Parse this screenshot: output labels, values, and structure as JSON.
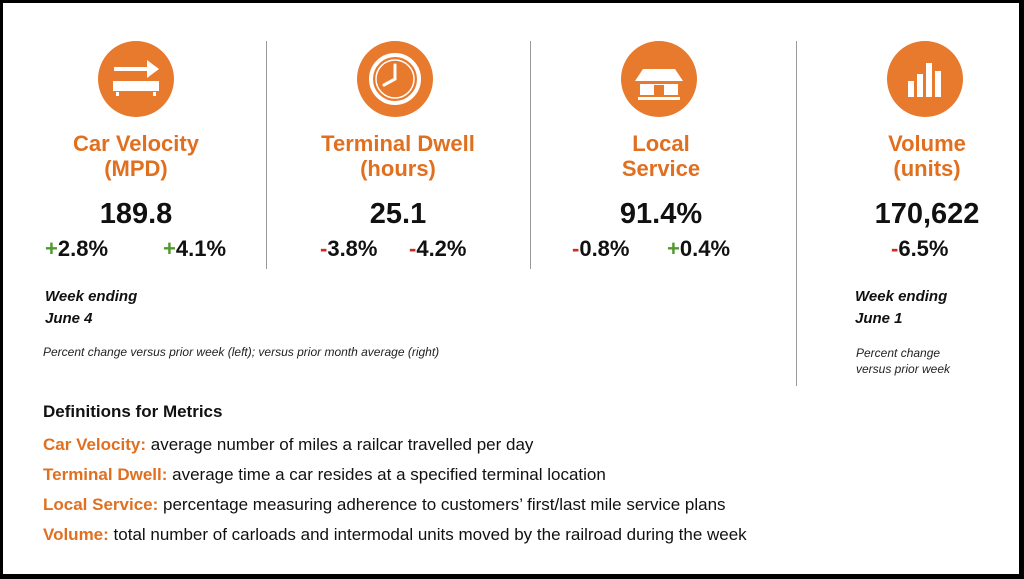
{
  "colors": {
    "accent": "#e87a2e",
    "positive": "#4f9a2f",
    "negative": "#d12a22"
  },
  "metrics": [
    {
      "icon": "railcar-arrow-icon",
      "title_line1": "Car Velocity",
      "title_line2": "(MPD)",
      "value": "189.8",
      "change_week_sign": "+",
      "change_week": "2.8%",
      "change_month_sign": "+",
      "change_month": "4.1%"
    },
    {
      "icon": "clock-icon",
      "title_line1": "Terminal Dwell",
      "title_line2": "(hours)",
      "value": "25.1",
      "change_week_sign": "-",
      "change_week": "3.8%",
      "change_month_sign": "-",
      "change_month": "4.2%"
    },
    {
      "icon": "warehouse-icon",
      "title_line1": "Local",
      "title_line2": "Service",
      "value": "91.4%",
      "change_week_sign": "-",
      "change_week": "0.8%",
      "change_month_sign": "+",
      "change_month": "0.4%"
    },
    {
      "icon": "bar-chart-icon",
      "title_line1": "Volume",
      "title_line2": "(units)",
      "value": "170,622",
      "change_week_sign": "-",
      "change_week": "6.5%"
    }
  ],
  "left_note": {
    "line1": "Week ending",
    "line2": "June 4",
    "caption": "Percent change versus prior week (left); versus prior month average (right)"
  },
  "right_note": {
    "line1": "Week ending",
    "line2": "June 1",
    "caption_line1": "Percent change",
    "caption_line2": "versus prior week"
  },
  "definitions": {
    "title": "Definitions for Metrics",
    "items": [
      {
        "term": "Car Velocity:",
        "text": "average number of miles a railcar travelled per day"
      },
      {
        "term": "Terminal Dwell:",
        "text": "average time a car resides at a specified terminal location"
      },
      {
        "term": "Local Service:",
        "text": "percentage measuring adherence to customers’ first/last mile service plans"
      },
      {
        "term": "Volume:",
        "text": "total number of carloads and intermodal units moved by the railroad during the week"
      }
    ]
  }
}
